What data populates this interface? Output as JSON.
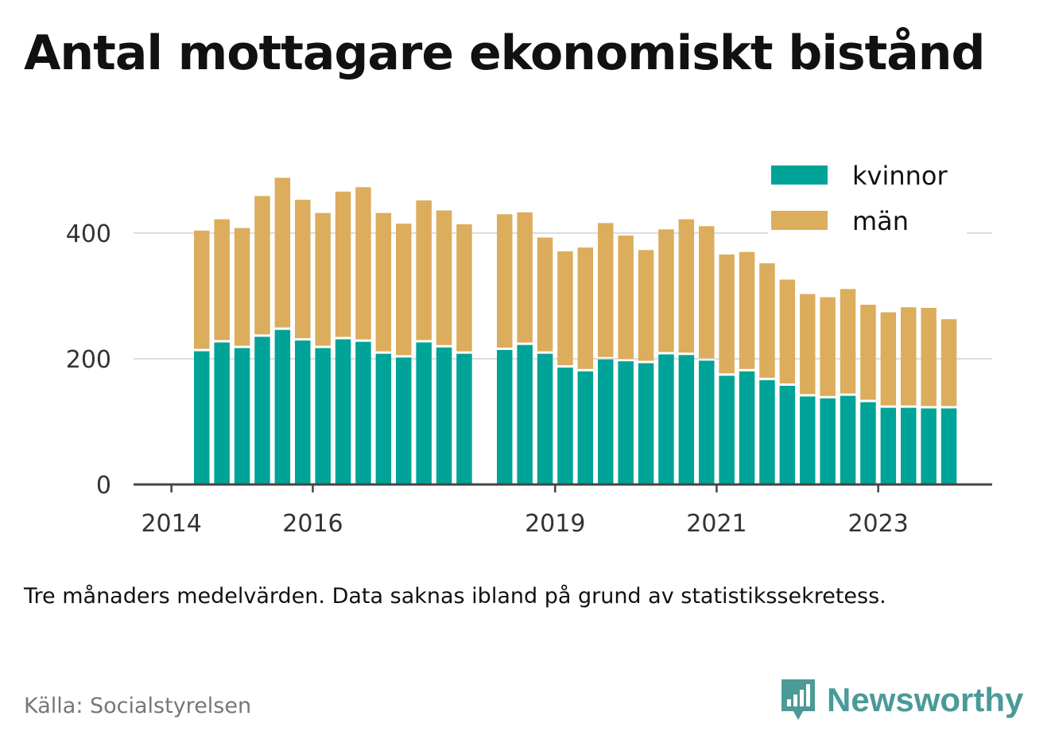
{
  "header": {
    "title": "Antal mottagare ekonomiskt bistånd"
  },
  "footer": {
    "note": "Tre månaders medelvärden. Data saknas ibland på grund av statistikssekretess.",
    "source": "Källa: Socialstyrelsen",
    "brand": "Newsworthy",
    "brand_icon": "bar-chart-speech-bubble-icon",
    "brand_color": "#4a9a98"
  },
  "chart_data": {
    "type": "bar",
    "stacked": true,
    "title": "",
    "xlabel": "",
    "ylabel": "",
    "ylim": [
      0,
      510
    ],
    "yticks": [
      0,
      200,
      400
    ],
    "xticks": [
      "2014",
      "2016",
      "2019",
      "2021",
      "2023"
    ],
    "grid": true,
    "legend_position": "top-right",
    "colors": {
      "kvinnor": "#00a398",
      "män": "#dbad5c",
      "axis": "#444444",
      "grid": "#dddddd"
    },
    "categories": [
      "2014-Q3",
      "2014-Q4",
      "2015-Q1",
      "2015-Q2",
      "2015-Q3",
      "2015-Q4",
      "2016-Q1",
      "2016-Q2",
      "2016-Q3",
      "2016-Q4",
      "2017-Q1",
      "2017-Q2",
      "2017-Q3",
      "2017-Q4",
      "2018-Q1",
      "2018-Q2",
      "2018-Q3",
      "2018-Q4",
      "2019-Q1",
      "2019-Q2",
      "2019-Q3",
      "2019-Q4",
      "2020-Q1",
      "2020-Q2",
      "2020-Q3",
      "2020-Q4",
      "2021-Q1",
      "2021-Q2",
      "2021-Q3",
      "2021-Q4",
      "2022-Q1",
      "2022-Q2",
      "2022-Q3",
      "2022-Q4",
      "2023-Q1",
      "2023-Q2",
      "2023-Q3",
      "2023-Q4",
      "2024-Q1"
    ],
    "series": [
      {
        "name": "kvinnor",
        "values": [
          212,
          226,
          217,
          235,
          246,
          229,
          217,
          231,
          227,
          208,
          202,
          226,
          218,
          208,
          null,
          214,
          222,
          208,
          186,
          180,
          199,
          196,
          193,
          207,
          206,
          197,
          173,
          180,
          166,
          157,
          140,
          137,
          141,
          131,
          122,
          122,
          121,
          121,
          null
        ]
      },
      {
        "name": "män",
        "values": [
          192,
          196,
          191,
          224,
          242,
          224,
          215,
          235,
          246,
          224,
          213,
          226,
          218,
          206,
          null,
          216,
          211,
          185,
          185,
          197,
          217,
          200,
          180,
          199,
          216,
          214,
          193,
          190,
          186,
          169,
          163,
          161,
          170,
          155,
          152,
          160,
          160,
          142,
          null
        ]
      }
    ]
  }
}
